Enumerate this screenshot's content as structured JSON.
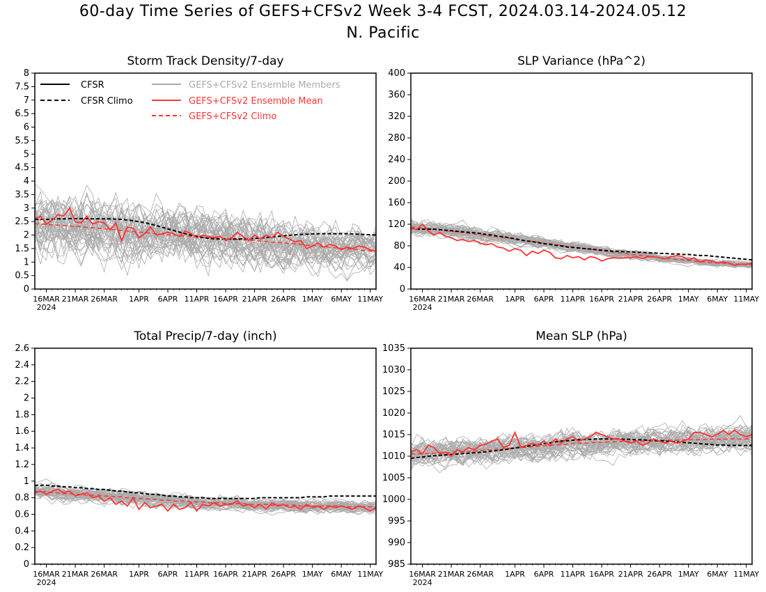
{
  "figure": {
    "title_line1": "60-day Time Series of GEFS+CFSv2 Week 3-4 FCST, 2024.03.14-2024.05.12",
    "title_line2": "N. Pacific"
  },
  "legend_labels": {
    "cfsr": "CFSR",
    "cfsr_climo": "CFSR Climo",
    "members": "GEFS+CFSv2 Ensemble Members",
    "ens_mean": "GEFS+CFSv2 Ensemble Mean",
    "gefs_climo": "GEFS+CFSv2 Climo"
  },
  "colors": {
    "members": "#aaaaaa",
    "ens_mean": "#ff3333",
    "cfsr_climo": "#000000",
    "gefs_climo": "#ff3333"
  },
  "x_ticks": [
    "16MAR",
    "21MAR",
    "26MAR",
    "1APR",
    "6APR",
    "11APR",
    "16APR",
    "21APR",
    "26APR",
    "1MAY",
    "6MAY",
    "11MAY"
  ],
  "x_tick_day_index": [
    2,
    7,
    12,
    18,
    23,
    28,
    33,
    38,
    43,
    48,
    53,
    58
  ],
  "x_year_label": "2024",
  "chart_data": [
    {
      "type": "line",
      "title": "Storm Track Density/7-day",
      "ylim": [
        0,
        8
      ],
      "yticks": [
        "0",
        "0.5",
        "1",
        "1.5",
        "2",
        "2.5",
        "3",
        "3.5",
        "4",
        "4.5",
        "5",
        "5.5",
        "6",
        "6.5",
        "7",
        "7.5",
        "8"
      ],
      "legend": "top-left",
      "series": [
        {
          "name": "CFSR Climo",
          "values": [
            2.58,
            2.58,
            2.58,
            2.59,
            2.6,
            2.6,
            2.61,
            2.61,
            2.61,
            2.61,
            2.6,
            2.6,
            2.6,
            2.6,
            2.59,
            2.58,
            2.56,
            2.53,
            2.5,
            2.46,
            2.41,
            2.35,
            2.29,
            2.23,
            2.17,
            2.11,
            2.05,
            2.0,
            1.95,
            1.91,
            1.88,
            1.86,
            1.85,
            1.85,
            1.85,
            1.85,
            1.86,
            1.86,
            1.87,
            1.89,
            1.91,
            1.93,
            1.95,
            1.97,
            1.99,
            2.01,
            2.02,
            2.03,
            2.04,
            2.05,
            2.05,
            2.05,
            2.05,
            2.05,
            2.05,
            2.04,
            2.03,
            2.02,
            2.01,
            2.0
          ]
        },
        {
          "name": "GEFS+CFSv2 Climo",
          "values": [
            2.42,
            2.41,
            2.39,
            2.38,
            2.37,
            2.35,
            2.34,
            2.32,
            2.31,
            2.29,
            2.27,
            2.25,
            2.23,
            2.21,
            2.19,
            2.17,
            2.15,
            2.13,
            2.11,
            2.09,
            2.07,
            2.05,
            2.03,
            2.01,
            2.0,
            1.98,
            1.96,
            1.95,
            1.93,
            1.92,
            1.9,
            1.89,
            1.88,
            1.86,
            1.85,
            1.84,
            1.82,
            1.81,
            1.79,
            1.78,
            1.76,
            1.74,
            1.72,
            1.71,
            1.69,
            1.67,
            1.65,
            1.63,
            1.61,
            1.59,
            1.57,
            1.55,
            1.53,
            1.51,
            1.49,
            1.47,
            1.45,
            1.43,
            1.41,
            1.4
          ]
        },
        {
          "name": "GEFS+CFSv2 Ensemble Mean",
          "values": [
            2.6,
            2.7,
            2.4,
            2.55,
            2.75,
            2.7,
            3.0,
            2.5,
            2.45,
            2.7,
            2.4,
            2.5,
            2.45,
            2.2,
            2.45,
            1.8,
            2.3,
            2.25,
            1.9,
            2.05,
            2.3,
            2.0,
            2.05,
            2.1,
            2.05,
            1.95,
            2.15,
            2.05,
            1.9,
            2.0,
            1.95,
            1.9,
            1.95,
            1.8,
            1.9,
            2.1,
            1.95,
            1.8,
            2.0,
            1.85,
            2.0,
            1.9,
            2.1,
            1.95,
            1.85,
            1.75,
            1.8,
            1.5,
            1.6,
            1.7,
            1.55,
            1.65,
            1.6,
            1.45,
            1.55,
            1.5,
            1.6,
            1.55,
            1.45,
            1.4
          ]
        }
      ]
    },
    {
      "type": "line",
      "title": "SLP Variance (hPa^2)",
      "ylim": [
        0,
        400
      ],
      "yticks": [
        "0",
        "40",
        "80",
        "120",
        "160",
        "200",
        "240",
        "280",
        "320",
        "360",
        "400"
      ],
      "series": [
        {
          "name": "CFSR Climo",
          "values": [
            112,
            111,
            111,
            111,
            111,
            110,
            109,
            108,
            107,
            106,
            105,
            104,
            103,
            101,
            100,
            98,
            97,
            95,
            93,
            91,
            89,
            88,
            86,
            84,
            83,
            81,
            80,
            78,
            77,
            76,
            75,
            74,
            73,
            72,
            71,
            70,
            70,
            69,
            69,
            68,
            68,
            67,
            67,
            66,
            66,
            65,
            65,
            64,
            64,
            63,
            62,
            62,
            61,
            60,
            59,
            58,
            57,
            56,
            55,
            54
          ]
        },
        {
          "name": "GEFS+CFSv2 Climo",
          "values": [
            115,
            114,
            113,
            112,
            111,
            110,
            108,
            107,
            106,
            105,
            103,
            102,
            101,
            99,
            98,
            97,
            95,
            94,
            92,
            91,
            89,
            88,
            87,
            85,
            84,
            82,
            81,
            79,
            78,
            77,
            75,
            74,
            72,
            71,
            70,
            68,
            67,
            66,
            64,
            63,
            62,
            61,
            60,
            58,
            57,
            56,
            55,
            54,
            53,
            52,
            51,
            50,
            49,
            48,
            48,
            47,
            46,
            46,
            45,
            45
          ]
        },
        {
          "name": "GEFS+CFSv2 Ensemble Mean",
          "values": [
            112,
            110,
            120,
            108,
            100,
            105,
            98,
            95,
            90,
            92,
            88,
            90,
            85,
            82,
            84,
            78,
            76,
            70,
            75,
            72,
            62,
            70,
            66,
            72,
            68,
            58,
            56,
            62,
            58,
            60,
            54,
            60,
            58,
            52,
            56,
            58,
            57,
            58,
            58,
            60,
            56,
            60,
            60,
            58,
            56,
            60,
            62,
            60,
            54,
            58,
            50,
            54,
            52,
            48,
            50,
            48,
            44,
            46,
            46,
            48
          ]
        }
      ]
    },
    {
      "type": "line",
      "title": "Total Precip/7-day (inch)",
      "ylim": [
        0,
        2.6
      ],
      "yticks": [
        "0",
        "0.2",
        "0.4",
        "0.6",
        "0.8",
        "1",
        "1.2",
        "1.4",
        "1.6",
        "1.8",
        "2",
        "2.2",
        "2.4",
        "2.6"
      ],
      "series": [
        {
          "name": "CFSR Climo",
          "values": [
            0.95,
            0.95,
            0.95,
            0.94,
            0.94,
            0.93,
            0.93,
            0.92,
            0.92,
            0.91,
            0.91,
            0.9,
            0.9,
            0.89,
            0.88,
            0.88,
            0.87,
            0.86,
            0.86,
            0.85,
            0.84,
            0.84,
            0.83,
            0.82,
            0.82,
            0.81,
            0.81,
            0.8,
            0.8,
            0.8,
            0.79,
            0.79,
            0.79,
            0.79,
            0.79,
            0.79,
            0.79,
            0.79,
            0.79,
            0.8,
            0.8,
            0.8,
            0.8,
            0.8,
            0.8,
            0.8,
            0.8,
            0.81,
            0.81,
            0.81,
            0.81,
            0.82,
            0.82,
            0.82,
            0.82,
            0.82,
            0.82,
            0.82,
            0.82,
            0.82
          ]
        },
        {
          "name": "GEFS+CFSv2 Climo",
          "values": [
            0.88,
            0.87,
            0.87,
            0.86,
            0.86,
            0.85,
            0.85,
            0.84,
            0.84,
            0.83,
            0.83,
            0.83,
            0.82,
            0.82,
            0.81,
            0.81,
            0.8,
            0.8,
            0.79,
            0.79,
            0.78,
            0.78,
            0.77,
            0.77,
            0.76,
            0.76,
            0.76,
            0.75,
            0.75,
            0.75,
            0.74,
            0.74,
            0.74,
            0.73,
            0.73,
            0.73,
            0.73,
            0.72,
            0.72,
            0.72,
            0.72,
            0.71,
            0.71,
            0.71,
            0.71,
            0.71,
            0.7,
            0.7,
            0.7,
            0.7,
            0.7,
            0.7,
            0.7,
            0.7,
            0.69,
            0.69,
            0.69,
            0.69,
            0.69,
            0.69
          ]
        },
        {
          "name": "GEFS+CFSv2 Ensemble Mean",
          "values": [
            0.86,
            0.88,
            0.84,
            0.88,
            0.9,
            0.86,
            0.88,
            0.82,
            0.84,
            0.86,
            0.8,
            0.82,
            0.76,
            0.8,
            0.72,
            0.76,
            0.7,
            0.8,
            0.66,
            0.74,
            0.68,
            0.7,
            0.72,
            0.64,
            0.72,
            0.66,
            0.68,
            0.74,
            0.64,
            0.72,
            0.7,
            0.74,
            0.7,
            0.72,
            0.72,
            0.76,
            0.7,
            0.72,
            0.68,
            0.72,
            0.66,
            0.74,
            0.7,
            0.72,
            0.68,
            0.7,
            0.66,
            0.72,
            0.68,
            0.7,
            0.66,
            0.7,
            0.68,
            0.7,
            0.68,
            0.66,
            0.7,
            0.68,
            0.64,
            0.68
          ]
        }
      ]
    },
    {
      "type": "line",
      "title": "Mean SLP (hPa)",
      "ylim": [
        985,
        1035
      ],
      "yticks": [
        "985",
        "990",
        "995",
        "1000",
        "1005",
        "1010",
        "1015",
        "1020",
        "1025",
        "1030",
        "1035"
      ],
      "series": [
        {
          "name": "CFSR Climo",
          "values": [
            1009.5,
            1009.7,
            1009.8,
            1010.0,
            1010.1,
            1010.2,
            1010.3,
            1010.4,
            1010.5,
            1010.6,
            1010.7,
            1010.8,
            1010.9,
            1011.0,
            1011.2,
            1011.3,
            1011.5,
            1011.7,
            1011.9,
            1012.1,
            1012.3,
            1012.5,
            1012.7,
            1012.9,
            1013.1,
            1013.3,
            1013.5,
            1013.6,
            1013.7,
            1013.8,
            1013.9,
            1013.9,
            1014.0,
            1014.0,
            1014.0,
            1014.0,
            1014.0,
            1013.9,
            1013.9,
            1013.8,
            1013.8,
            1013.7,
            1013.6,
            1013.6,
            1013.5,
            1013.4,
            1013.3,
            1013.2,
            1013.1,
            1013.0,
            1012.9,
            1012.8,
            1012.7,
            1012.6,
            1012.6,
            1012.5,
            1012.5,
            1012.5,
            1012.5,
            1012.5
          ]
        },
        {
          "name": "GEFS+CFSv2 Climo",
          "values": [
            1010.5,
            1010.5,
            1010.6,
            1010.6,
            1010.7,
            1010.8,
            1010.8,
            1010.9,
            1011.0,
            1011.0,
            1011.1,
            1011.2,
            1011.3,
            1011.4,
            1011.5,
            1011.6,
            1011.7,
            1011.8,
            1011.9,
            1012.0,
            1012.1,
            1012.2,
            1012.3,
            1012.4,
            1012.5,
            1012.6,
            1012.7,
            1012.8,
            1012.9,
            1013.0,
            1013.0,
            1013.1,
            1013.2,
            1013.2,
            1013.3,
            1013.3,
            1013.4,
            1013.4,
            1013.5,
            1013.5,
            1013.5,
            1013.6,
            1013.6,
            1013.6,
            1013.7,
            1013.7,
            1013.7,
            1013.8,
            1013.8,
            1013.8,
            1013.8,
            1013.9,
            1013.9,
            1013.9,
            1013.9,
            1014.0,
            1014.0,
            1014.0,
            1014.0,
            1014.0
          ]
        },
        {
          "name": "GEFS+CFSv2 Ensemble Mean",
          "values": [
            1011.0,
            1011.5,
            1010.5,
            1012.5,
            1012.0,
            1010.5,
            1011.0,
            1010.0,
            1011.5,
            1011.0,
            1012.0,
            1011.5,
            1012.5,
            1012.8,
            1013.5,
            1014.0,
            1012.0,
            1012.5,
            1015.5,
            1012.0,
            1012.5,
            1013.0,
            1012.5,
            1013.5,
            1012.5,
            1014.0,
            1013.0,
            1014.0,
            1014.5,
            1013.5,
            1014.0,
            1014.5,
            1015.5,
            1015.0,
            1014.5,
            1014.0,
            1014.0,
            1013.5,
            1013.0,
            1013.5,
            1012.5,
            1013.0,
            1014.0,
            1013.5,
            1013.0,
            1013.5,
            1013.0,
            1013.5,
            1014.0,
            1015.5,
            1015.5,
            1015.0,
            1014.5,
            1015.0,
            1016.0,
            1015.0,
            1016.0,
            1015.0,
            1014.5,
            1015.0
          ]
        }
      ]
    }
  ]
}
